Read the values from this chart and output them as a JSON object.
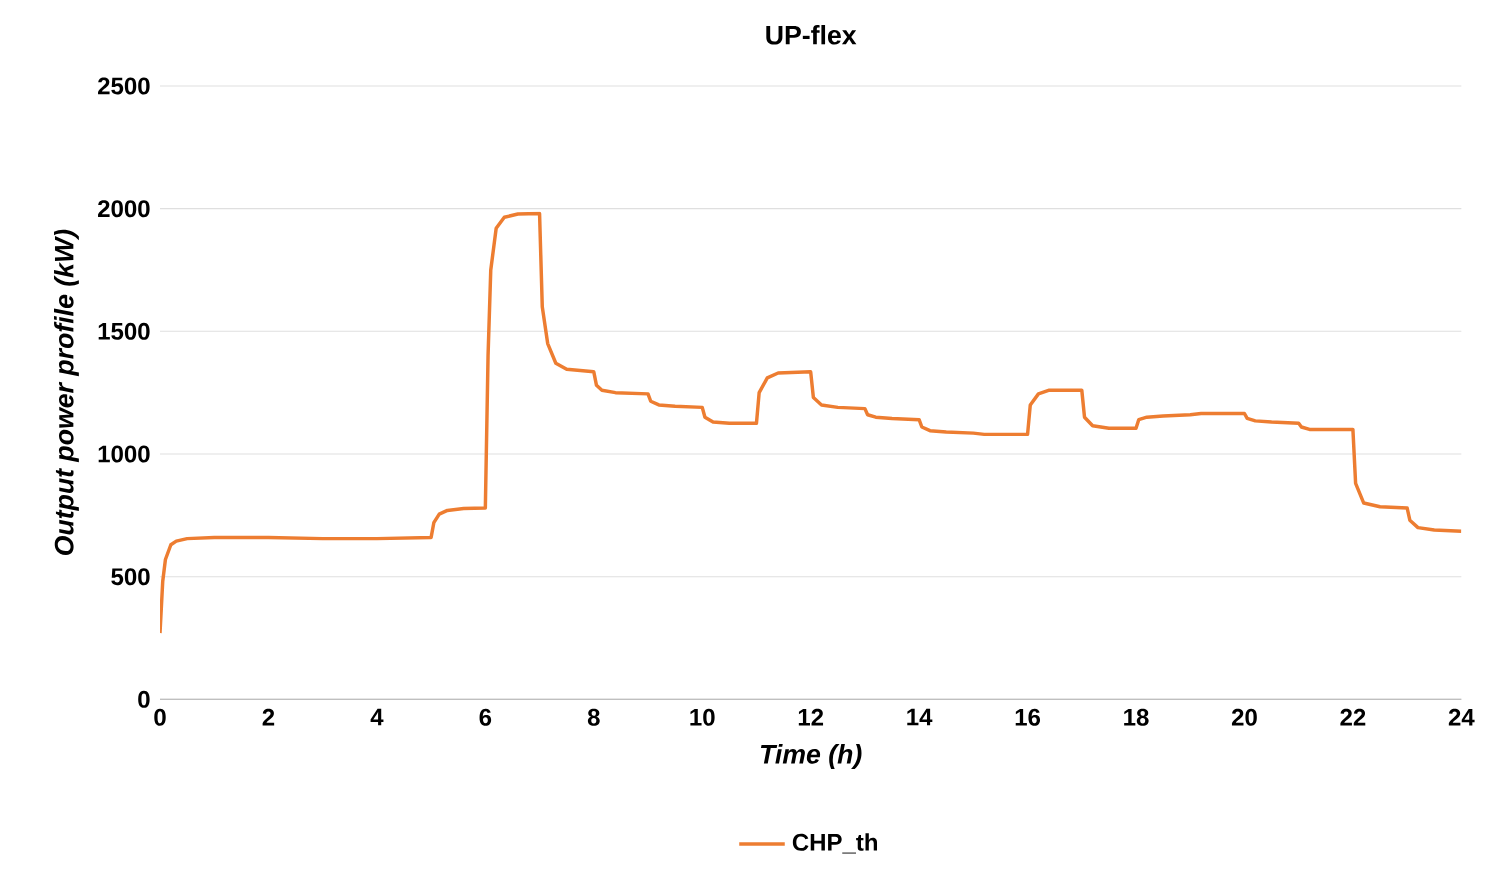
{
  "chart_data": {
    "type": "line",
    "title": "UP-flex",
    "xlabel": "Time (h)",
    "ylabel": "Output power profile (kW)",
    "xlim": [
      0,
      24
    ],
    "xticks": [
      0,
      2,
      4,
      6,
      8,
      10,
      12,
      14,
      16,
      18,
      20,
      22,
      24
    ],
    "ylim": [
      0,
      2500
    ],
    "yticks": [
      0,
      500,
      1000,
      1500,
      2000,
      2500
    ],
    "grid": "y",
    "legend": "bottom",
    "series": [
      {
        "name": "CHP_th",
        "color": "#ed7d31",
        "x": [
          0,
          0.05,
          0.1,
          0.2,
          0.3,
          0.5,
          1,
          2,
          3,
          4,
          5,
          5.05,
          5.15,
          5.3,
          5.6,
          6,
          6.05,
          6.1,
          6.2,
          6.35,
          6.6,
          7,
          7.05,
          7.15,
          7.3,
          7.5,
          8,
          8.05,
          8.15,
          8.4,
          9,
          9.05,
          9.2,
          9.5,
          10,
          10.05,
          10.2,
          10.5,
          11,
          11.05,
          11.2,
          11.4,
          12,
          12.05,
          12.2,
          12.5,
          13,
          13.05,
          13.2,
          13.5,
          14,
          14.05,
          14.2,
          14.5,
          15,
          15.2,
          15.5,
          16,
          16.05,
          16.2,
          16.4,
          17,
          17.05,
          17.2,
          17.5,
          18,
          18.05,
          18.2,
          18.5,
          19,
          19.2,
          20,
          20.05,
          20.2,
          20.5,
          21,
          21.05,
          21.2,
          21.5,
          22,
          22.05,
          22.2,
          22.5,
          23,
          23.05,
          23.2,
          23.5,
          24
        ],
        "values": [
          270,
          480,
          570,
          630,
          645,
          655,
          660,
          660,
          655,
          655,
          660,
          720,
          755,
          770,
          778,
          780,
          1400,
          1750,
          1920,
          1965,
          1978,
          1980,
          1600,
          1450,
          1370,
          1345,
          1335,
          1280,
          1260,
          1250,
          1245,
          1215,
          1200,
          1195,
          1190,
          1150,
          1130,
          1125,
          1125,
          1250,
          1310,
          1330,
          1335,
          1230,
          1200,
          1190,
          1185,
          1160,
          1150,
          1145,
          1140,
          1110,
          1095,
          1090,
          1085,
          1080,
          1080,
          1080,
          1200,
          1245,
          1260,
          1260,
          1150,
          1115,
          1105,
          1105,
          1140,
          1150,
          1155,
          1160,
          1165,
          1165,
          1145,
          1135,
          1130,
          1125,
          1110,
          1100,
          1100,
          1100,
          880,
          800,
          785,
          780,
          730,
          700,
          690,
          685
        ]
      }
    ]
  }
}
